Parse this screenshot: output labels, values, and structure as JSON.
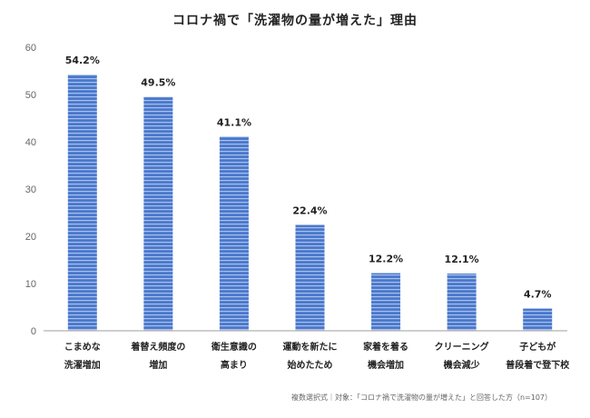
{
  "chart_data": {
    "type": "bar",
    "title": "コロナ禍で「洗濯物の量が増えた」理由",
    "categories": [
      [
        "こまめな",
        "洗濯増加"
      ],
      [
        "着替え頻度の",
        "増加"
      ],
      [
        "衛生意識の",
        "高まり"
      ],
      [
        "運動を新たに",
        "始めたため"
      ],
      [
        "家着を着る",
        "機会増加"
      ],
      [
        "クリーニング",
        "機会減少"
      ],
      [
        "子どもが",
        "普段着で登下校"
      ]
    ],
    "values": [
      54.2,
      49.5,
      41.1,
      22.4,
      12.2,
      12.1,
      4.7
    ],
    "data_labels": [
      "54.2%",
      "49.5%",
      "41.1%",
      "22.4%",
      "12.2%",
      "12.1%",
      "4.7%"
    ],
    "yticks": [
      0,
      10,
      20,
      30,
      40,
      50,
      60
    ],
    "ylim": [
      0,
      60
    ],
    "xlabel": "",
    "ylabel": "",
    "grid": false,
    "colors": {
      "bar": "#4a78cc",
      "stripe": "#a9c1ea",
      "axis": "#bfbfbf"
    }
  },
  "footnote": "複数選択式｜対象：「コロナ禍で洗濯物の量が増えた」と回答した方（n=107）"
}
